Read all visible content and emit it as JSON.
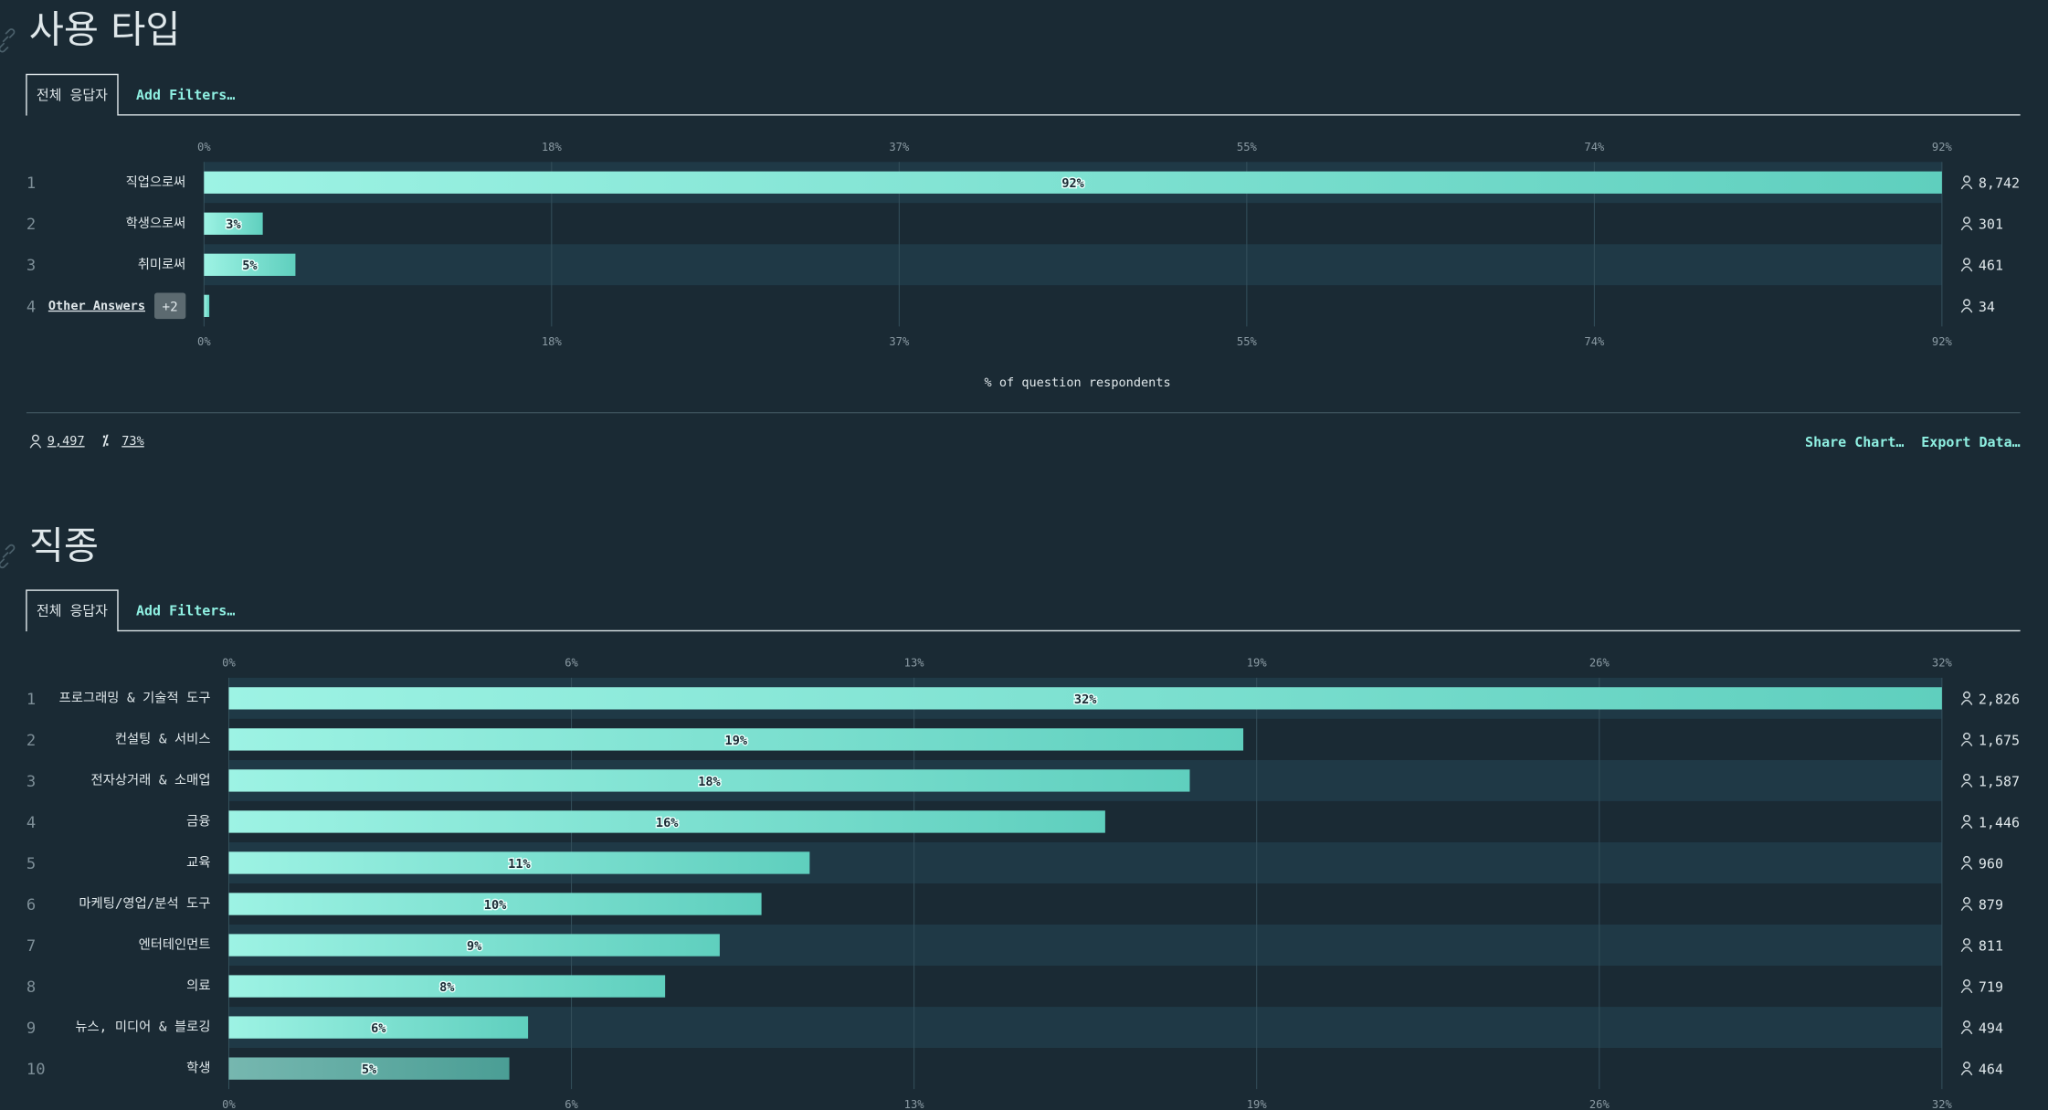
{
  "chart_data": [
    {
      "type": "bar",
      "orientation": "horizontal",
      "title": "사용 타입",
      "tabs": [
        "전체 응답자",
        "Add Filters…"
      ],
      "ranks": [
        1,
        2,
        3,
        4
      ],
      "categories": [
        "직업으로써",
        "학생으로써",
        "취미로써",
        "Other Answers"
      ],
      "other_badge": "+2",
      "values": [
        92,
        3.11,
        4.84,
        0.28
      ],
      "value_labels": [
        "92%",
        "3%",
        "5%",
        null
      ],
      "counts": [
        "8,742",
        "301",
        "461",
        "34"
      ],
      "color": "#7fe3d3",
      "xlim": [
        0,
        92
      ],
      "xticks": [
        {
          "value": 0,
          "label": "0%"
        },
        {
          "value": 18.4,
          "label": "18%"
        },
        {
          "value": 36.8,
          "label": "37%"
        },
        {
          "value": 55.2,
          "label": "55%"
        },
        {
          "value": 73.6,
          "label": "74%"
        },
        {
          "value": 92,
          "label": "92%"
        }
      ],
      "xlabel": "% of question respondents",
      "footer": {
        "respondents": "9,497",
        "percent": "73%",
        "actions": [
          "Share Chart…",
          "Export Data…"
        ]
      }
    },
    {
      "type": "bar",
      "orientation": "horizontal",
      "title": "직종",
      "tabs": [
        "전체 응답자",
        "Add Filters…"
      ],
      "ranks": [
        1,
        2,
        3,
        4,
        5,
        6,
        7,
        8,
        9,
        10
      ],
      "categories": [
        "프로그래밍 & 기술적 도구",
        "컨설팅 & 서비스",
        "전자상거래 & 소매업",
        "금융",
        "교육",
        "마케팅/영업/분석 도구",
        "엔터테인먼트",
        "의료",
        "뉴스, 미디어 & 블로깅",
        "학생"
      ],
      "values": [
        32,
        18.95,
        17.95,
        16.37,
        10.85,
        9.95,
        9.17,
        8.15,
        5.59,
        5.24
      ],
      "value_labels": [
        "32%",
        "19%",
        "18%",
        "16%",
        "11%",
        "10%",
        "9%",
        "8%",
        "6%",
        "5%"
      ],
      "counts": [
        "2,826",
        "1,675",
        "1,587",
        "1,446",
        "960",
        "879",
        "811",
        "719",
        "494",
        "464"
      ],
      "color": "#7fe3d3",
      "xlim": [
        0,
        32
      ],
      "xticks": [
        {
          "value": 0,
          "label": "0%"
        },
        {
          "value": 6.4,
          "label": "6%"
        },
        {
          "value": 12.8,
          "label": "13%"
        },
        {
          "value": 19.2,
          "label": "19%"
        },
        {
          "value": 25.6,
          "label": "26%"
        },
        {
          "value": 32,
          "label": "32%"
        }
      ]
    }
  ]
}
